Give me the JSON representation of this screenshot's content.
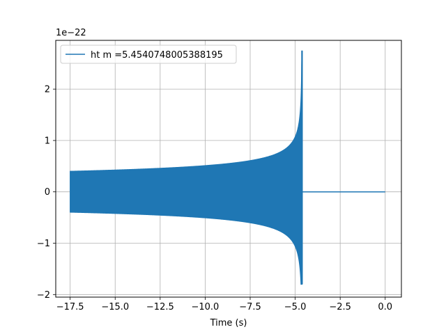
{
  "chart_data": {
    "type": "line",
    "title": "",
    "xlabel": "Time (s)",
    "ylabel": "",
    "y_offset_label": "1e−22",
    "y_scale_exponent": -22,
    "xlim": [
      -18.3,
      0.9
    ],
    "ylim": [
      -2.05,
      2.95
    ],
    "x_ticks": [
      -17.5,
      -15.0,
      -12.5,
      -10.0,
      -7.5,
      -5.0,
      -2.5,
      0.0
    ],
    "x_tick_labels": [
      "−17.5",
      "−15.0",
      "−12.5",
      "−10.0",
      "−7.5",
      "−5.0",
      "−2.5",
      "0.0"
    ],
    "y_ticks": [
      -2,
      -1,
      0,
      1,
      2
    ],
    "y_tick_labels": [
      "−2",
      "−1",
      "0",
      "1",
      "2"
    ],
    "grid": true,
    "legend_position": "top-left",
    "series": [
      {
        "name": "ht m =5.454074800538819 5",
        "display_name": "ht m =5.4540748005388195",
        "color": "#1f77b4",
        "chirp": {
          "start_time": -17.5,
          "merger_time": -4.62,
          "end_time": 0.0,
          "amplitude_start": 0.4,
          "peak_max": 2.75,
          "peak_min": -1.8
        }
      }
    ]
  }
}
